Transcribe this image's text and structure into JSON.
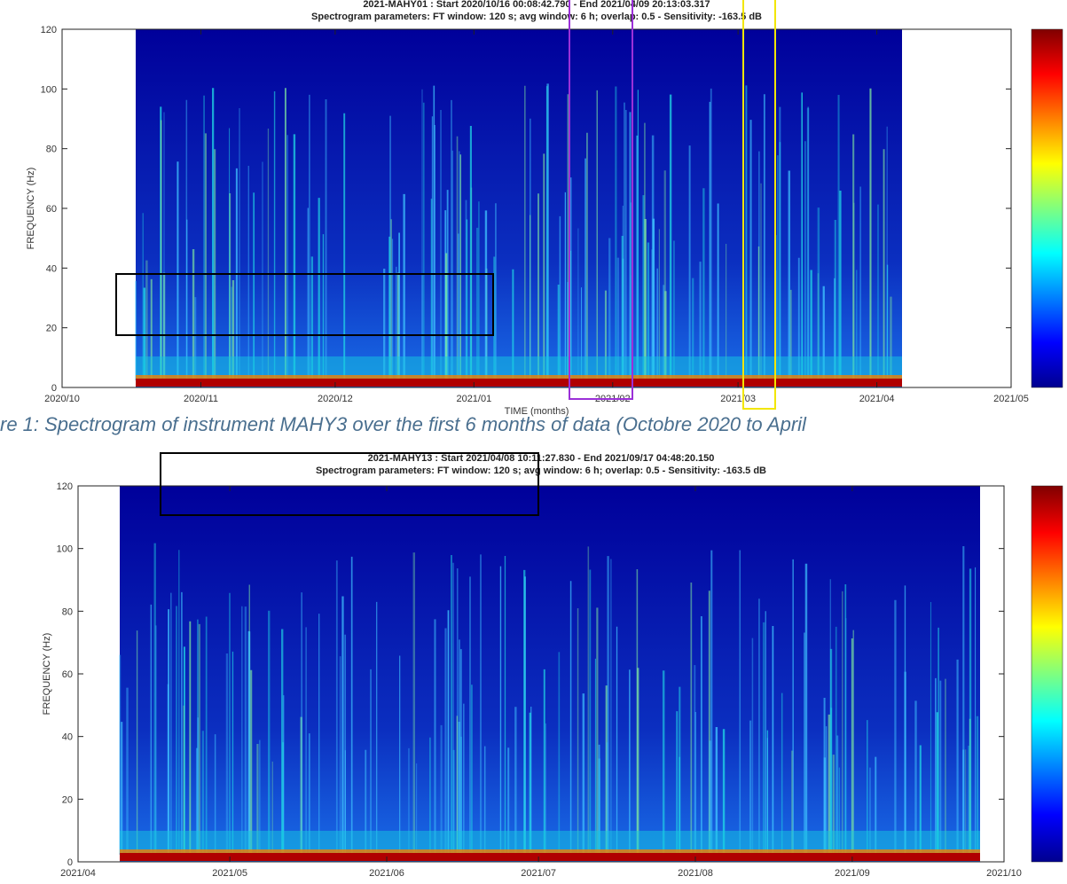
{
  "chart_data": [
    {
      "type": "spectrogram",
      "title": "2021-MAHY01 : Start 2020/10/16 00:08:42.790 - End 2021/04/09 20:13:03.317",
      "subtitle": "Spectrogram parameters: FT window: 120 s; avg window: 6 h; overlap: 0.5 - Sensitivity: -163.5 dB",
      "xlabel": "TIME (months)",
      "ylabel": "FREQUENCY (Hz)",
      "xlim": [
        "2020/10",
        "2021/05"
      ],
      "xticks": [
        "2020/10",
        "2020/11",
        "2020/12",
        "2021/01",
        "2021/02",
        "2021/03",
        "2021/04",
        "2021/05"
      ],
      "ylim": [
        0,
        120
      ],
      "yticks": [
        0,
        20,
        40,
        60,
        80,
        100,
        120
      ],
      "caption": "re 1: Spectrogram of instrument MAHY3 over the first 6 months of data (Octobre 2020 to April"
    },
    {
      "type": "spectrogram",
      "title": "2021-MAHY13 : Start 2021/04/08 10:11:27.830 - End 2021/09/17 04:48:20.150",
      "subtitle": "Spectrogram parameters: FT window: 120 s; avg window: 6 h; overlap: 0.5 - Sensitivity: -163.5 dB",
      "ylabel": "FREQUENCY (Hz)",
      "xlim": [
        "2021/04",
        "2021/10"
      ],
      "xticks": [
        "2021/04",
        "2021/05",
        "2021/06",
        "2021/07",
        "2021/08",
        "2021/09",
        "2021/10"
      ],
      "ylim": [
        0,
        120
      ],
      "yticks": [
        0,
        20,
        40,
        60,
        80,
        100,
        120
      ]
    }
  ]
}
